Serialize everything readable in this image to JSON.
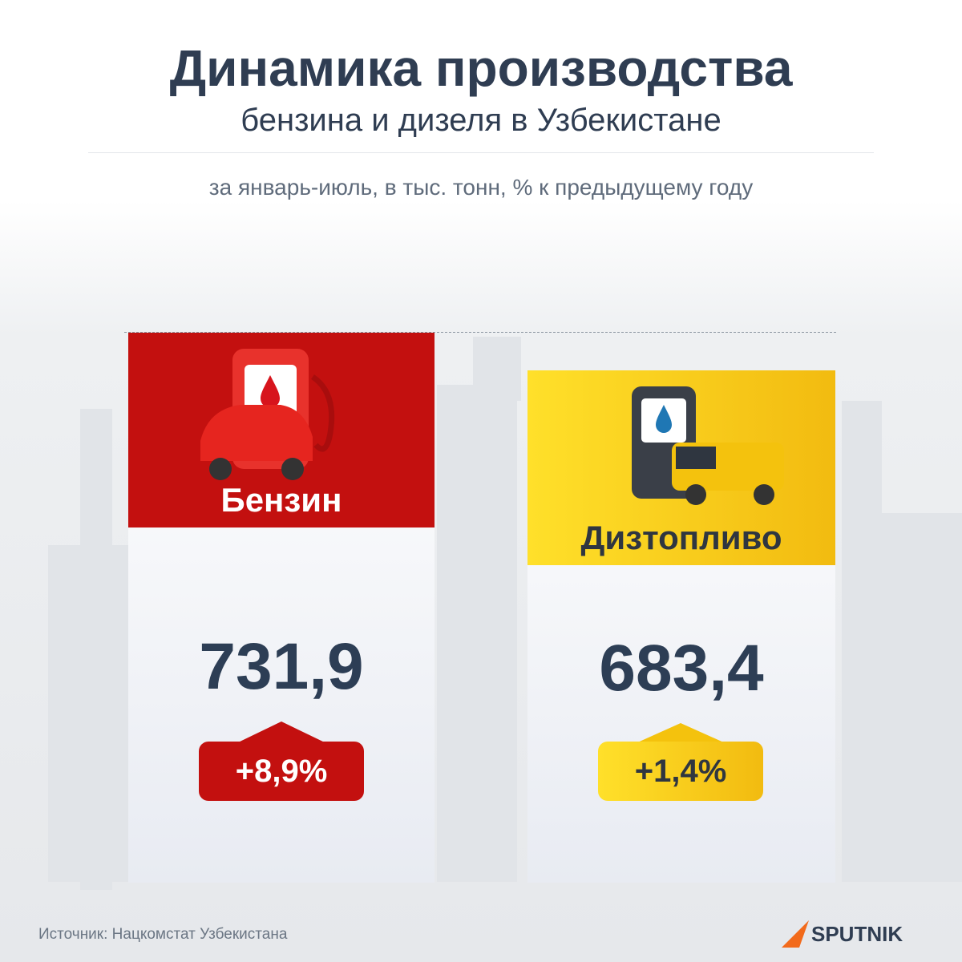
{
  "header": {
    "title": "Динамика производства",
    "subtitle": "бензина и дизеля в Узбекистане",
    "note": "за январь-июль, в тыс. тонн, % к предыдущему году"
  },
  "cards": [
    {
      "label": "Бензин",
      "value": "731,9",
      "change": "+8,9%"
    },
    {
      "label": "Дизтопливо",
      "value": "683,4",
      "change": "+1,4%"
    }
  ],
  "footer": {
    "source": "Источник: Нацкомстат Узбекистана",
    "brand": "SPUTNIK"
  }
}
